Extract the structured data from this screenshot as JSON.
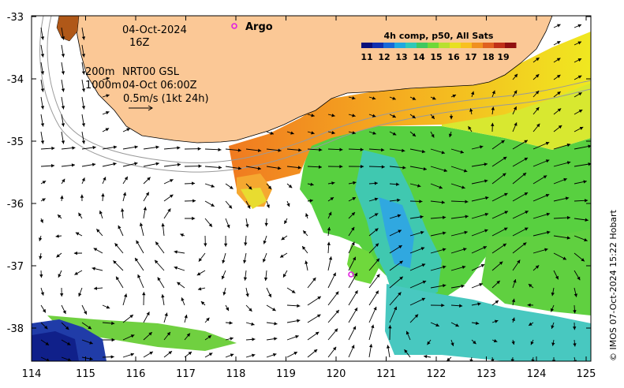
{
  "map": {
    "lon_ticks": [
      "114",
      "115",
      "116",
      "117",
      "118",
      "119",
      "120",
      "121",
      "122",
      "123",
      "124",
      "125"
    ],
    "lat_ticks": [
      "-33",
      "-34",
      "-35",
      "-36",
      "-37",
      "-38"
    ],
    "date": "04-Oct-2024",
    "hour": "16Z",
    "depth_200": "200m",
    "depth_1000": "1000m",
    "product": "NRT00 GSL",
    "product_time": "04-Oct 06:00Z",
    "scale_label": "0.5m/s (1kt 24h)",
    "argo_label": "Argo",
    "colorbar_title": "4h comp, p50, All Sats",
    "colorbar_ticks": [
      "11",
      "12",
      "13",
      "14",
      "15",
      "16",
      "17",
      "18",
      "19"
    ],
    "credit": "© IMOS 07-Oct-2024 15:22 Hobart",
    "land_color": "#fbc896",
    "argo_color": "#e020e0"
  }
}
